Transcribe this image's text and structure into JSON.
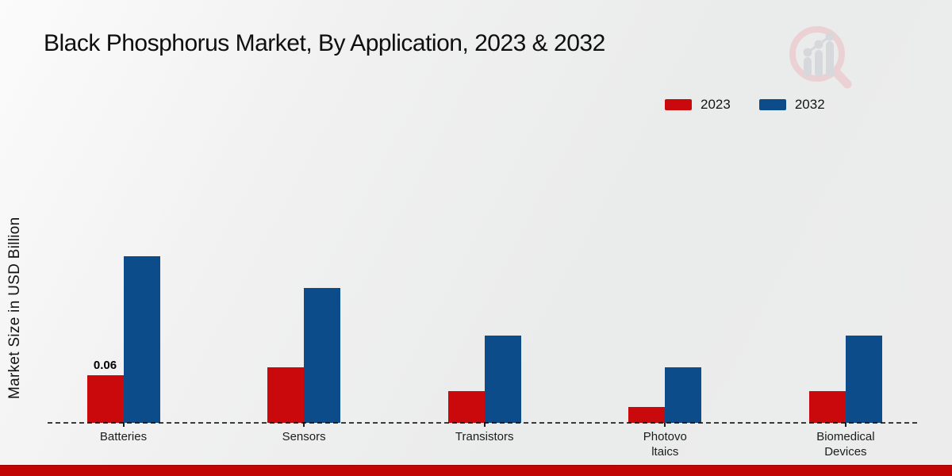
{
  "title": "Black Phosphorus Market, By Application, 2023 & 2032",
  "y_axis_label": "Market Size in USD Billion",
  "legend": {
    "items": [
      {
        "label": "2023",
        "color": "#c9090c"
      },
      {
        "label": "2032",
        "color": "#0c4c8a"
      }
    ]
  },
  "icons": {
    "brand_logo": "magnifier-growth-chart-logo"
  },
  "colors": {
    "accent_red": "#c9090c",
    "accent_blue": "#0c4c8a",
    "footer_bar": "#c10404",
    "background": "#ededed",
    "baseline": "#1d1d1d"
  },
  "chart_data": {
    "type": "bar",
    "title": "Black Phosphorus Market, By Application, 2023 & 2032",
    "xlabel": "",
    "ylabel": "Market Size in USD Billion",
    "categories": [
      "Batteries",
      "Sensors",
      "Transistors",
      "Photovoltaics",
      "Biomedical Devices"
    ],
    "category_label_lines": [
      [
        "Batteries"
      ],
      [
        "Sensors"
      ],
      [
        "Transistors"
      ],
      [
        "Photovo",
        "ltaics"
      ],
      [
        "Biomedical",
        "Devices"
      ]
    ],
    "series": [
      {
        "name": "2023",
        "color": "#c9090c",
        "values": [
          0.06,
          0.07,
          0.04,
          0.02,
          0.04
        ]
      },
      {
        "name": "2032",
        "color": "#0c4c8a",
        "values": [
          0.21,
          0.17,
          0.11,
          0.07,
          0.11
        ]
      }
    ],
    "bar_value_labels": [
      {
        "category_index": 0,
        "series_index": 0,
        "text": "0.06"
      }
    ],
    "ylim": [
      0,
      0.55
    ],
    "grid": false,
    "y_axis_ticks_visible": false,
    "legend_position": "top-right",
    "baseline_style": "dashed"
  }
}
